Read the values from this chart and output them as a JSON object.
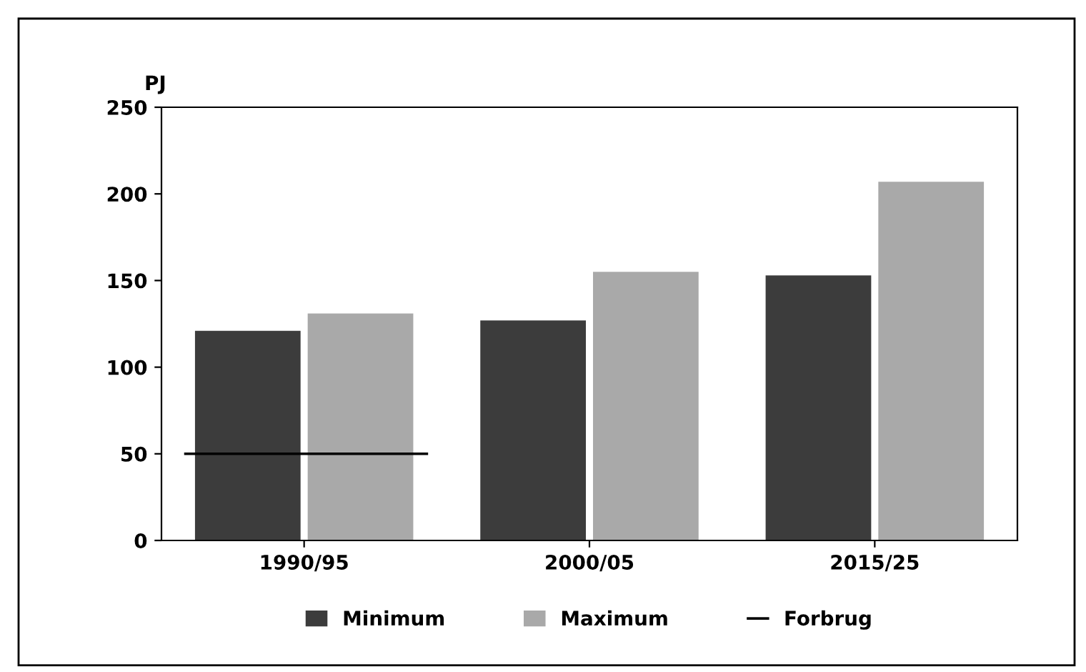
{
  "chart_data": {
    "type": "bar",
    "ylabel": "PJ",
    "categories": [
      "1990/95",
      "2000/05",
      "2015/25"
    ],
    "series": [
      {
        "name": "Minimum",
        "color": "#3c3c3c",
        "values": [
          121,
          127,
          153
        ]
      },
      {
        "name": "Maximum",
        "color": "#a9a9a9",
        "values": [
          131,
          155,
          207
        ]
      }
    ],
    "ref_lines": [
      {
        "axis": "y",
        "value": 50,
        "label": "Forbrug",
        "color": "#000000"
      }
    ],
    "ylim": [
      0,
      250
    ],
    "yticks": [
      0,
      50,
      100,
      150,
      200,
      250
    ],
    "grid": false,
    "legend": "bottom"
  }
}
